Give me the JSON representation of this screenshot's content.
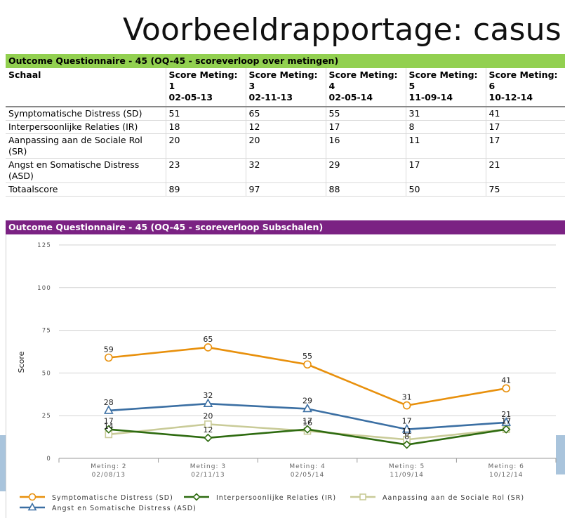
{
  "slide": {
    "title": "Voorbeeldrapportage: casus"
  },
  "table": {
    "header": "Outcome Questionnaire - 45 (OQ-45 - scoreverloop over metingen)",
    "columns": [
      {
        "lines": [
          "Schaal"
        ]
      },
      {
        "lines": [
          "Score Meting:",
          "1",
          "02-05-13"
        ]
      },
      {
        "lines": [
          "Score Meting:",
          "3",
          "02-11-13"
        ]
      },
      {
        "lines": [
          "Score Meting:",
          "4",
          "02-05-14"
        ]
      },
      {
        "lines": [
          "Score Meting:",
          "5",
          "11-09-14"
        ]
      },
      {
        "lines": [
          "Score Meting:",
          "6",
          "10-12-14"
        ]
      }
    ],
    "rows": [
      {
        "label": "Symptomatische Distress (SD)",
        "values": [
          "51",
          "65",
          "55",
          "31",
          "41"
        ]
      },
      {
        "label": "Interpersoonlijke Relaties (IR)",
        "values": [
          "18",
          "12",
          "17",
          "8",
          "17"
        ]
      },
      {
        "label": "Aanpassing aan de Sociale Rol (SR)",
        "values": [
          "20",
          "20",
          "16",
          "11",
          "17"
        ]
      },
      {
        "label": "Angst en Somatische Distress (ASD)",
        "values": [
          "23",
          "32",
          "29",
          "17",
          "21"
        ]
      },
      {
        "label": "Totaalscore",
        "values": [
          "89",
          "97",
          "88",
          "50",
          "75"
        ]
      }
    ]
  },
  "chart_data": {
    "type": "line",
    "title": "Outcome Questionnaire - 45   (OQ-45 - scoreverloop Subschalen)",
    "ylabel": "Score",
    "xlabel": "",
    "ylim": [
      0,
      125
    ],
    "yticks": [
      0,
      25,
      50,
      75,
      100,
      125
    ],
    "grid": true,
    "legend_position": "bottom",
    "categories": [
      {
        "line1": "Meting: 2",
        "line2": "02/08/13"
      },
      {
        "line1": "Meting: 3",
        "line2": "02/11/13"
      },
      {
        "line1": "Meting: 4",
        "line2": "02/05/14"
      },
      {
        "line1": "Meting: 5",
        "line2": "11/09/14"
      },
      {
        "line1": "Meting: 6",
        "line2": "10/12/14"
      }
    ],
    "series": [
      {
        "name": "Symptomatische Distress (SD)",
        "values": [
          59,
          65,
          55,
          31,
          41
        ],
        "color": "#e8900c",
        "marker": "circle"
      },
      {
        "name": "Interpersoonlijke Relaties (IR)",
        "values": [
          17,
          12,
          17,
          8,
          17
        ],
        "color": "#2e6b10",
        "marker": "diamond"
      },
      {
        "name": "Aanpassing aan de Sociale Rol (SR)",
        "values": [
          14,
          20,
          16,
          11,
          17
        ],
        "color": "#c9cb98",
        "marker": "square"
      },
      {
        "name": "Angst en Somatische Distress (ASD)",
        "values": [
          28,
          32,
          29,
          17,
          21
        ],
        "color": "#3b6fa3",
        "marker": "triangle"
      }
    ]
  }
}
